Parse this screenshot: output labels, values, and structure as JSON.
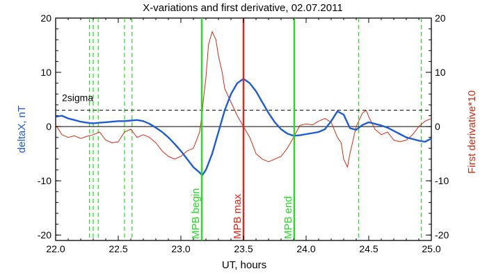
{
  "chart_data": {
    "type": "line",
    "title": "X-variations and first derivative, 02.07.2011",
    "xlabel": "UT, hours",
    "ylabel_left": "deltaX, nT",
    "ylabel_right": "First derivative*10",
    "xlim": [
      22.0,
      25.0
    ],
    "ylim": [
      -21,
      20
    ],
    "xticks": [
      22.0,
      22.5,
      23.0,
      23.5,
      24.0,
      24.5,
      25.0
    ],
    "xtick_labels": [
      "22.0",
      "22.5",
      "23.0",
      "23.5",
      "24.0",
      "24.5",
      "25.0"
    ],
    "yticks": [
      -20,
      -10,
      0,
      10,
      20
    ],
    "ytick_labels": [
      "-20",
      "-10",
      "0",
      "10",
      "20"
    ],
    "threshold": {
      "value": 3.0,
      "label": "2sigma"
    },
    "zero_line": 0,
    "colors": {
      "deltaX": "#1e5bd6",
      "derivative": "#d62a12",
      "markers_green": "#22dd22",
      "marker_red": "#ee2211",
      "axis": "#000000"
    },
    "vertical_markers": [
      {
        "x": 23.167,
        "label": "MPB begin",
        "color": "#22dd22",
        "style": "solid"
      },
      {
        "x": 23.5,
        "label": "MPB max",
        "color": "#ee2211",
        "style": "solid"
      },
      {
        "x": 23.905,
        "label": "MPB end",
        "color": "#22dd22",
        "style": "solid"
      }
    ],
    "dashed_markers": [
      22.27,
      22.3,
      22.34,
      22.55,
      22.61,
      24.42,
      24.92
    ],
    "series": [
      {
        "key": "deltaX",
        "axis": "left",
        "x": [
          22.0,
          22.05,
          22.1,
          22.15,
          22.2,
          22.25,
          22.3,
          22.35,
          22.4,
          22.45,
          22.5,
          22.55,
          22.6,
          22.65,
          22.7,
          22.75,
          22.8,
          22.85,
          22.9,
          22.95,
          23.0,
          23.05,
          23.1,
          23.15,
          23.17,
          23.2,
          23.25,
          23.3,
          23.35,
          23.4,
          23.45,
          23.5,
          23.55,
          23.6,
          23.65,
          23.7,
          23.75,
          23.8,
          23.85,
          23.9,
          23.95,
          24.0,
          24.05,
          24.1,
          24.15,
          24.2,
          24.25,
          24.3,
          24.35,
          24.4,
          24.45,
          24.5,
          24.55,
          24.6,
          24.65,
          24.7,
          24.75,
          24.8,
          24.85,
          24.9,
          24.95,
          25.0
        ],
        "y": [
          1.8,
          2.0,
          1.5,
          1.2,
          0.9,
          0.7,
          0.6,
          0.7,
          0.8,
          0.9,
          1.0,
          1.0,
          1.1,
          1.2,
          1.0,
          0.5,
          -0.2,
          -1.0,
          -2.0,
          -3.2,
          -4.5,
          -6.0,
          -7.5,
          -8.5,
          -9.0,
          -8.0,
          -5.0,
          -1.0,
          3.0,
          6.0,
          8.0,
          8.8,
          8.0,
          6.5,
          4.5,
          2.5,
          0.8,
          -0.5,
          -1.3,
          -1.7,
          -1.6,
          -1.4,
          -1.2,
          -1.0,
          -0.5,
          1.0,
          2.8,
          2.2,
          -0.3,
          -0.6,
          0.3,
          0.8,
          0.5,
          0.2,
          -0.2,
          -0.8,
          -1.4,
          -2.0,
          -2.3,
          -2.6,
          -2.8,
          -2.2
        ]
      },
      {
        "key": "derivative",
        "axis": "right",
        "x": [
          22.0,
          22.05,
          22.1,
          22.15,
          22.2,
          22.25,
          22.3,
          22.35,
          22.4,
          22.45,
          22.5,
          22.55,
          22.6,
          22.65,
          22.7,
          22.75,
          22.8,
          22.85,
          22.9,
          22.95,
          23.0,
          23.05,
          23.1,
          23.15,
          23.17,
          23.18,
          23.2,
          23.22,
          23.25,
          23.28,
          23.3,
          23.33,
          23.35,
          23.4,
          23.45,
          23.5,
          23.55,
          23.6,
          23.65,
          23.7,
          23.75,
          23.8,
          23.85,
          23.9,
          23.95,
          24.0,
          24.05,
          24.1,
          24.15,
          24.2,
          24.25,
          24.28,
          24.3,
          24.33,
          24.35,
          24.38,
          24.4,
          24.45,
          24.48,
          24.5,
          24.55,
          24.6,
          24.65,
          24.7,
          24.75,
          24.8,
          24.85,
          24.9,
          24.95,
          25.0
        ],
        "y": [
          0.3,
          -1.5,
          -2.0,
          -1.7,
          -2.2,
          -1.8,
          -1.5,
          -1.0,
          -2.5,
          -3.0,
          -2.8,
          -1.0,
          -0.5,
          -2.0,
          -1.5,
          -2.0,
          -3.0,
          -4.5,
          -5.5,
          -6.0,
          -5.5,
          -4.5,
          -4.0,
          -1.0,
          2.5,
          5.0,
          9.0,
          15.0,
          17.5,
          16.0,
          13.0,
          10.0,
          7.0,
          4.5,
          2.0,
          0.0,
          -2.0,
          -5.0,
          -6.0,
          -6.5,
          -6.0,
          -5.5,
          -4.0,
          -2.0,
          0.2,
          0.5,
          0.3,
          1.0,
          1.5,
          0.8,
          -2.0,
          -3.0,
          -6.0,
          -7.5,
          -5.0,
          -2.0,
          0.0,
          2.5,
          3.0,
          1.8,
          -0.5,
          -1.5,
          -1.0,
          -2.5,
          -2.8,
          -2.5,
          -1.5,
          0.0,
          1.0,
          1.5
        ]
      }
    ]
  }
}
